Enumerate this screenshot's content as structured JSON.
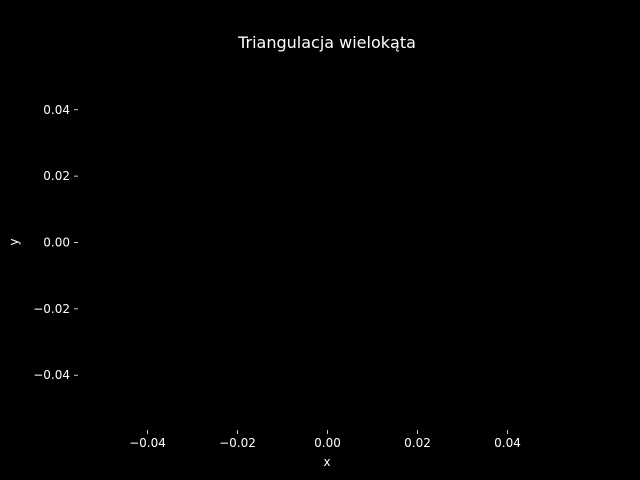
{
  "chart_data": {
    "type": "scatter",
    "title": "Triangulacja wielokąta",
    "xlabel": "x",
    "ylabel": "y",
    "xlim": [
      -0.055,
      0.055
    ],
    "ylim": [
      -0.055,
      0.055
    ],
    "xticks": [
      -0.04,
      -0.02,
      0.0,
      0.02,
      0.04
    ],
    "xtick_labels": [
      "−0.04",
      "−0.02",
      "0.00",
      "0.02",
      "0.04"
    ],
    "yticks": [
      -0.04,
      -0.02,
      0.0,
      0.02,
      0.04
    ],
    "ytick_labels": [
      "−0.04",
      "−0.02",
      "0.00",
      "0.02",
      "0.04"
    ],
    "grid": false,
    "series": [],
    "colors": {
      "background": "#000000",
      "foreground": "#ffffff"
    }
  }
}
